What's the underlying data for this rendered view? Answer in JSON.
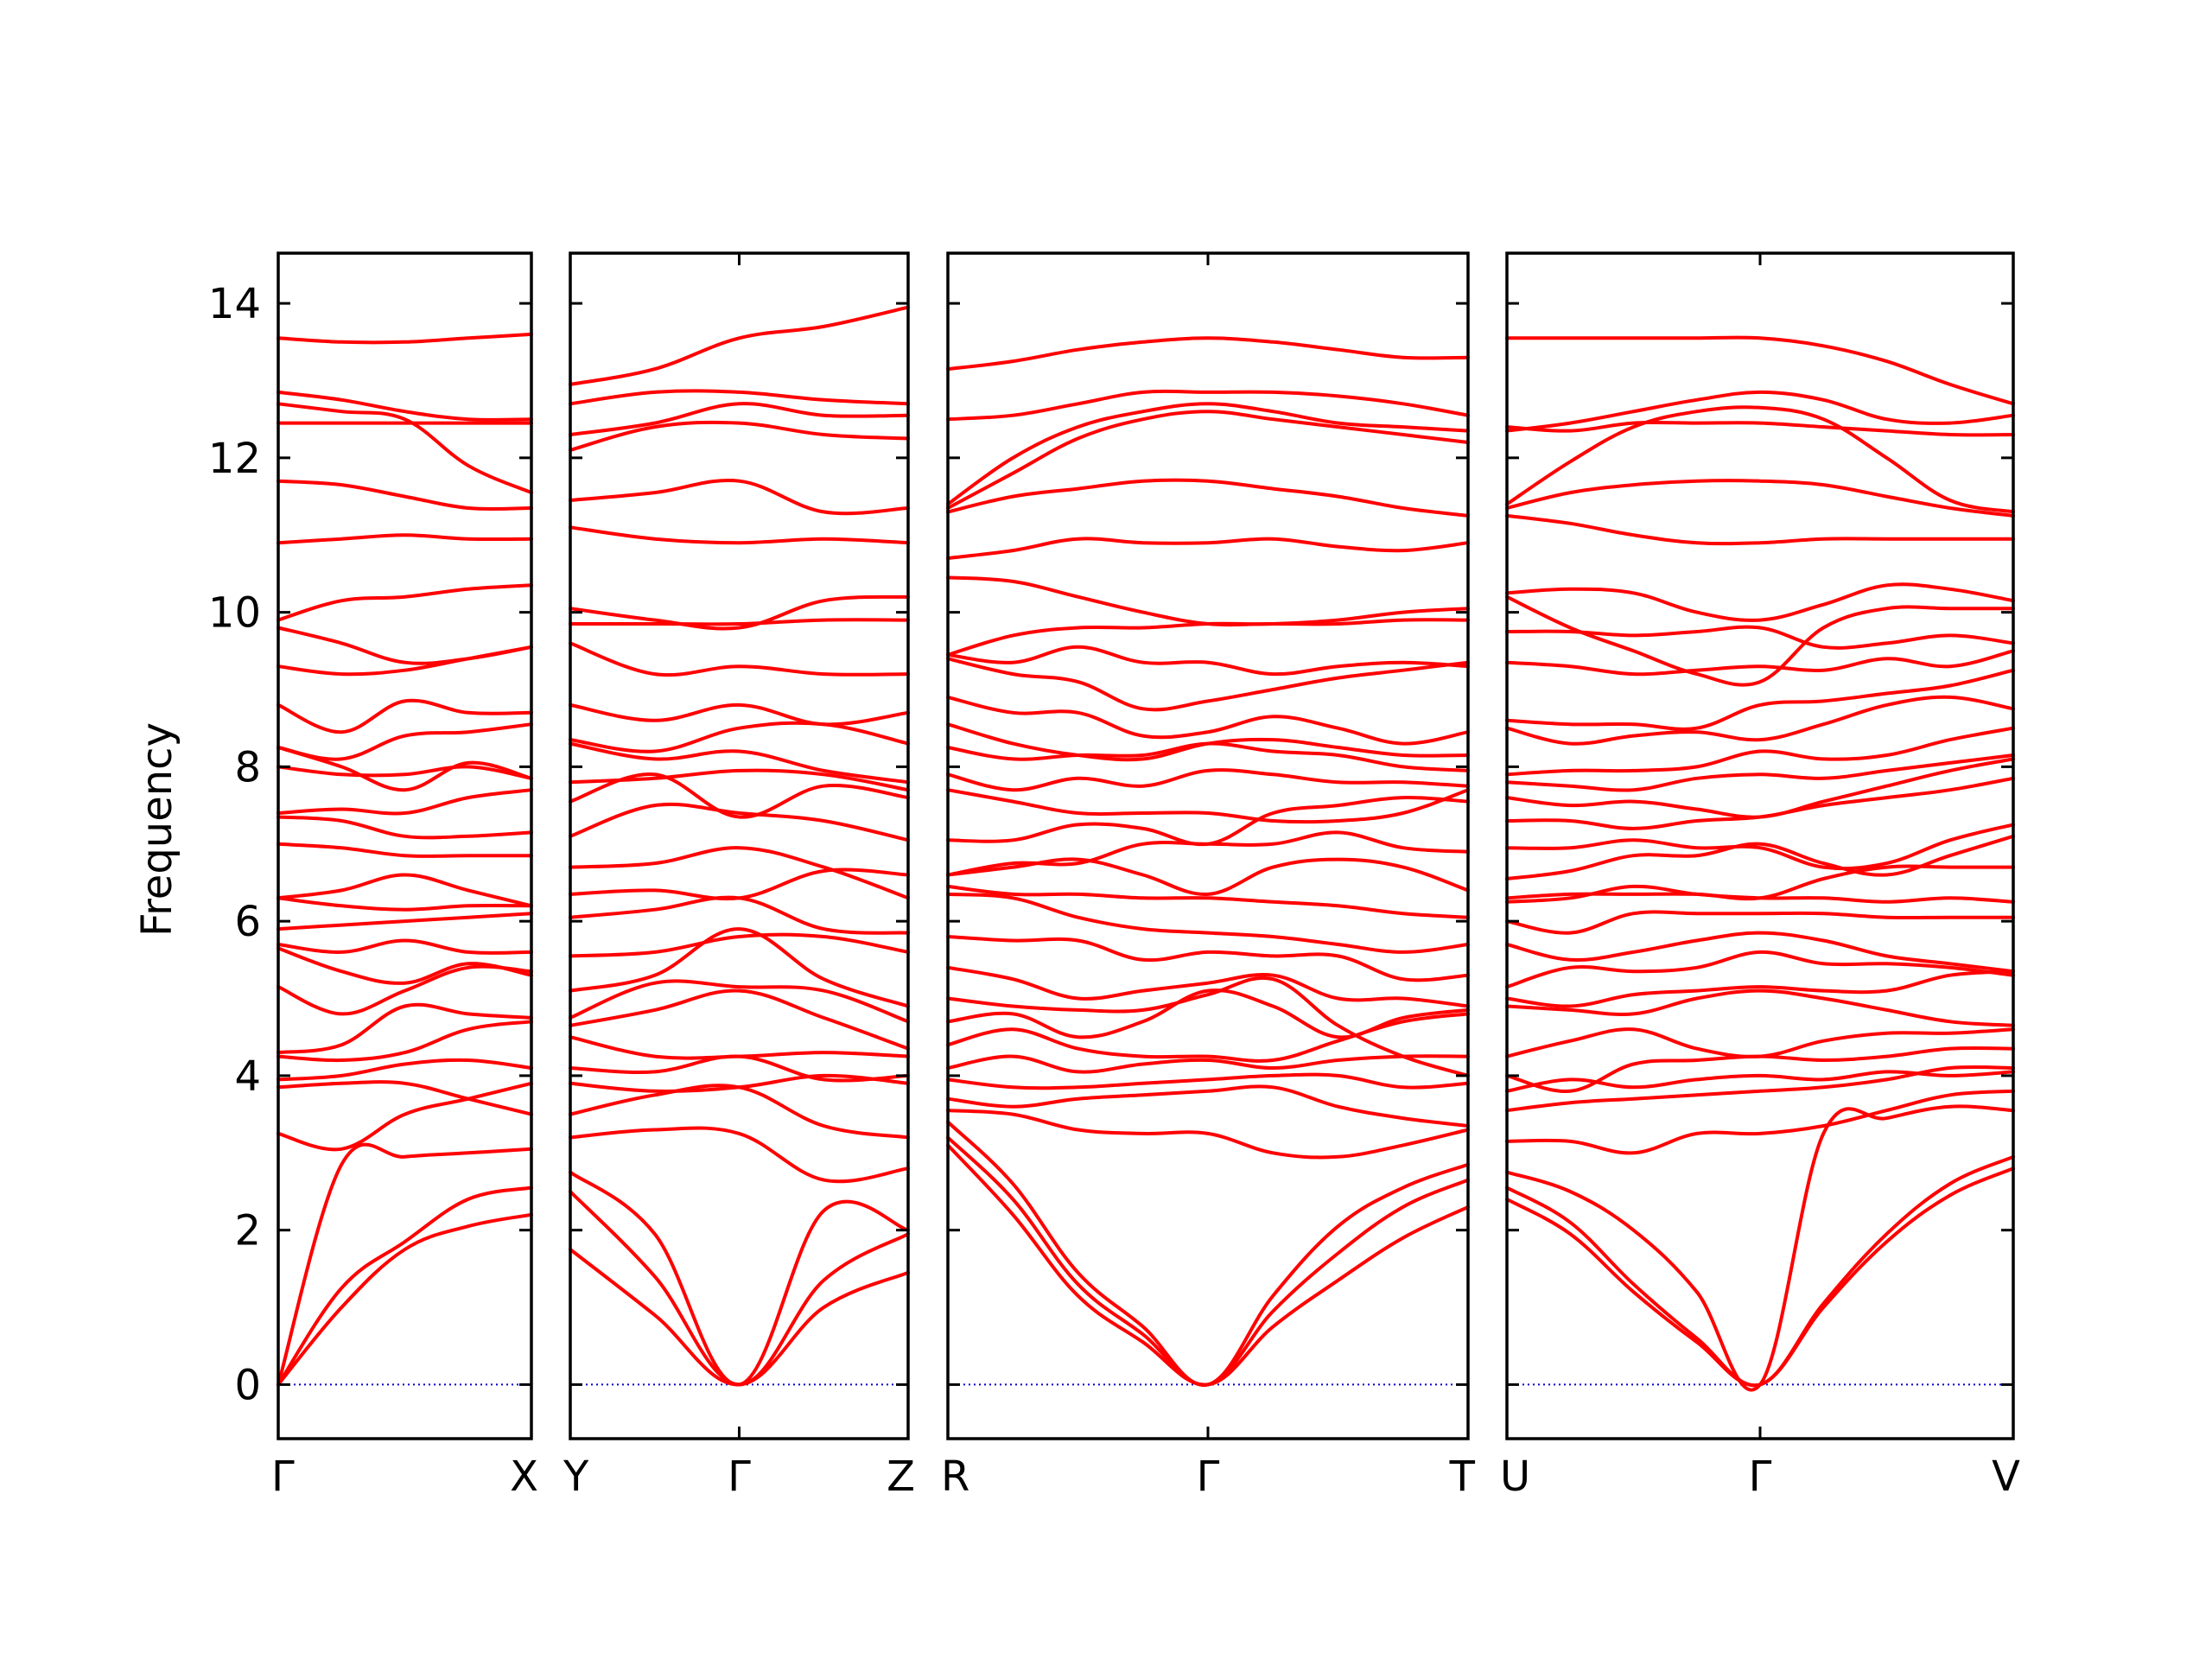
{
  "chart_data": {
    "type": "line",
    "ylabel": "Frequency",
    "ylim": [
      -0.7,
      14.65
    ],
    "yticks": [
      0,
      2,
      4,
      6,
      8,
      10,
      12,
      14
    ],
    "line_color": "#ff0000",
    "zero_line_color": "#0000cc",
    "panels": [
      {
        "labels": [
          "Γ",
          "X"
        ],
        "x": [
          0,
          0.25,
          0.5,
          0.75,
          1
        ],
        "bands": [
          [
            0,
            1.0,
            1.75,
            2.05,
            2.2
          ],
          [
            0,
            1.25,
            1.85,
            2.4,
            2.55
          ],
          [
            0,
            2.85,
            2.95,
            3.0,
            3.05
          ],
          [
            3.25,
            3.05,
            3.5,
            3.7,
            3.9
          ],
          [
            3.85,
            3.9,
            3.9,
            3.7,
            3.5
          ],
          [
            3.95,
            4.0,
            4.15,
            4.2,
            4.1
          ],
          [
            4.25,
            4.2,
            4.3,
            4.6,
            4.7
          ],
          [
            4.3,
            4.4,
            4.9,
            4.8,
            4.75
          ],
          [
            5.15,
            4.8,
            5.1,
            5.4,
            5.35
          ],
          [
            5.65,
            5.35,
            5.2,
            5.45,
            5.3
          ],
          [
            5.7,
            5.6,
            5.75,
            5.6,
            5.6
          ],
          [
            5.9,
            5.95,
            6.0,
            6.05,
            6.1
          ],
          [
            6.3,
            6.2,
            6.15,
            6.2,
            6.2
          ],
          [
            6.3,
            6.4,
            6.6,
            6.4,
            6.2
          ],
          [
            7.0,
            6.95,
            6.85,
            6.85,
            6.85
          ],
          [
            7.35,
            7.3,
            7.1,
            7.1,
            7.15
          ],
          [
            7.4,
            7.45,
            7.4,
            7.6,
            7.7
          ],
          [
            8.0,
            7.9,
            7.9,
            8.0,
            7.85
          ],
          [
            8.25,
            8.0,
            7.7,
            8.05,
            7.85
          ],
          [
            8.25,
            8.1,
            8.4,
            8.45,
            8.55
          ],
          [
            8.8,
            8.45,
            8.85,
            8.7,
            8.7
          ],
          [
            9.3,
            9.2,
            9.25,
            9.4,
            9.55
          ],
          [
            9.8,
            9.6,
            9.35,
            9.4,
            9.55
          ],
          [
            9.9,
            10.15,
            10.2,
            10.3,
            10.35
          ],
          [
            10.9,
            10.95,
            11.0,
            10.95,
            10.95
          ],
          [
            11.7,
            11.65,
            11.5,
            11.35,
            11.35
          ],
          [
            12.45,
            12.45,
            12.45,
            12.45,
            12.45
          ],
          [
            12.7,
            12.6,
            12.5,
            11.9,
            11.55
          ],
          [
            12.85,
            12.75,
            12.6,
            12.5,
            12.5
          ],
          [
            13.55,
            13.5,
            13.5,
            13.55,
            13.6
          ]
        ]
      },
      {
        "labels": [
          "Y",
          "Γ",
          "Z"
        ],
        "x": [
          0,
          0.25,
          0.5,
          0.75,
          1
        ],
        "bands": [
          [
            1.75,
            0.9,
            0,
            1.0,
            1.45
          ],
          [
            2.5,
            1.4,
            0,
            1.35,
            1.95
          ],
          [
            2.75,
            1.95,
            0,
            2.25,
            2.0
          ],
          [
            3.2,
            3.3,
            3.25,
            2.65,
            2.8
          ],
          [
            3.5,
            3.75,
            3.85,
            3.35,
            3.2
          ],
          [
            3.9,
            3.8,
            3.85,
            4.0,
            3.9
          ],
          [
            4.1,
            4.05,
            4.25,
            3.95,
            4.0
          ],
          [
            4.5,
            4.25,
            4.25,
            4.3,
            4.25
          ],
          [
            4.65,
            4.85,
            5.1,
            4.75,
            4.35
          ],
          [
            4.75,
            5.2,
            5.15,
            5.1,
            4.7
          ],
          [
            5.1,
            5.3,
            5.9,
            5.25,
            4.9
          ],
          [
            5.55,
            5.6,
            5.8,
            5.8,
            5.6
          ],
          [
            6.05,
            6.15,
            6.3,
            5.9,
            5.85
          ],
          [
            6.35,
            6.4,
            6.3,
            6.65,
            6.6
          ],
          [
            6.7,
            6.75,
            6.95,
            6.7,
            6.3
          ],
          [
            7.1,
            7.5,
            7.4,
            7.3,
            7.05
          ],
          [
            7.55,
            7.9,
            7.35,
            7.75,
            7.6
          ],
          [
            7.8,
            7.85,
            7.95,
            7.9,
            7.7
          ],
          [
            8.3,
            8.1,
            8.2,
            7.95,
            7.8
          ],
          [
            8.35,
            8.2,
            8.5,
            8.55,
            8.3
          ],
          [
            8.8,
            8.6,
            8.8,
            8.55,
            8.7
          ],
          [
            9.6,
            9.2,
            9.3,
            9.2,
            9.2
          ],
          [
            9.85,
            9.85,
            9.85,
            9.9,
            9.9
          ],
          [
            10.05,
            9.9,
            9.8,
            10.15,
            10.2
          ],
          [
            11.1,
            10.95,
            10.9,
            10.95,
            10.9
          ],
          [
            11.45,
            11.55,
            11.7,
            11.3,
            11.35
          ],
          [
            12.1,
            12.4,
            12.45,
            12.3,
            12.25
          ],
          [
            12.3,
            12.45,
            12.7,
            12.55,
            12.55
          ],
          [
            12.7,
            12.85,
            12.85,
            12.75,
            12.7
          ],
          [
            12.95,
            13.15,
            13.55,
            13.7,
            13.95
          ]
        ]
      },
      {
        "labels": [
          "R",
          "Γ",
          "T"
        ],
        "x": [
          0,
          0.125,
          0.25,
          0.375,
          0.5,
          0.625,
          0.75,
          0.875,
          1
        ],
        "bands": [
          [
            3.1,
            2.2,
            1.15,
            0.55,
            0,
            0.75,
            1.35,
            1.9,
            2.3
          ],
          [
            3.2,
            2.4,
            1.3,
            0.65,
            0,
            0.95,
            1.7,
            2.3,
            2.65
          ],
          [
            3.4,
            2.6,
            1.45,
            0.75,
            0,
            1.15,
            2.05,
            2.55,
            2.85
          ],
          [
            3.55,
            3.5,
            3.3,
            3.25,
            3.25,
            3.0,
            2.95,
            3.1,
            3.3
          ],
          [
            3.7,
            3.6,
            3.7,
            3.75,
            3.8,
            3.85,
            3.6,
            3.45,
            3.35
          ],
          [
            3.95,
            3.85,
            3.85,
            3.9,
            3.95,
            4.0,
            4.0,
            3.85,
            3.9
          ],
          [
            4.1,
            4.25,
            4.05,
            4.15,
            4.2,
            4.1,
            4.2,
            4.25,
            4.25
          ],
          [
            4.4,
            4.6,
            4.35,
            4.25,
            4.25,
            4.2,
            4.45,
            4.7,
            4.8
          ],
          [
            4.7,
            4.8,
            4.5,
            4.7,
            5.1,
            4.9,
            4.5,
            4.75,
            4.85
          ],
          [
            5.0,
            4.9,
            4.85,
            4.85,
            5.05,
            5.25,
            4.65,
            4.25,
            4.0
          ],
          [
            5.4,
            5.25,
            5.0,
            5.1,
            5.2,
            5.3,
            5.0,
            5.0,
            4.9
          ],
          [
            5.8,
            5.75,
            5.75,
            5.5,
            5.6,
            5.55,
            5.55,
            5.25,
            5.3
          ],
          [
            6.35,
            6.3,
            6.05,
            5.9,
            5.85,
            5.8,
            5.7,
            5.6,
            5.7
          ],
          [
            6.45,
            6.35,
            6.35,
            6.3,
            6.3,
            6.25,
            6.2,
            6.1,
            6.05
          ],
          [
            6.6,
            6.7,
            6.8,
            6.6,
            6.35,
            6.7,
            6.8,
            6.7,
            6.4
          ],
          [
            6.6,
            6.75,
            6.75,
            7.0,
            7.0,
            7.0,
            7.15,
            6.95,
            6.9
          ],
          [
            7.05,
            7.05,
            7.25,
            7.2,
            7.0,
            7.4,
            7.5,
            7.6,
            7.55
          ],
          [
            7.7,
            7.55,
            7.4,
            7.4,
            7.4,
            7.3,
            7.3,
            7.4,
            7.7
          ],
          [
            7.9,
            7.7,
            7.85,
            7.75,
            7.95,
            7.9,
            7.8,
            7.8,
            7.75
          ],
          [
            8.25,
            8.1,
            8.15,
            8.15,
            8.3,
            8.2,
            8.15,
            8.0,
            7.95
          ],
          [
            8.55,
            8.3,
            8.15,
            8.1,
            8.3,
            8.35,
            8.25,
            8.15,
            8.15
          ],
          [
            8.9,
            8.7,
            8.7,
            8.4,
            8.45,
            8.65,
            8.5,
            8.3,
            8.45
          ],
          [
            9.4,
            9.2,
            9.1,
            8.75,
            8.85,
            9.0,
            9.15,
            9.25,
            9.35
          ],
          [
            9.45,
            9.35,
            9.55,
            9.35,
            9.35,
            9.2,
            9.3,
            9.35,
            9.3
          ],
          [
            9.45,
            9.7,
            9.8,
            9.8,
            9.85,
            9.85,
            9.9,
            10.0,
            10.05
          ],
          [
            10.45,
            10.4,
            10.2,
            10.0,
            9.85,
            9.85,
            9.85,
            9.9,
            9.9
          ],
          [
            10.7,
            10.8,
            10.95,
            10.9,
            10.9,
            10.95,
            10.85,
            10.8,
            10.9
          ],
          [
            11.3,
            11.5,
            11.6,
            11.7,
            11.7,
            11.6,
            11.5,
            11.35,
            11.25
          ],
          [
            11.35,
            11.8,
            12.25,
            12.5,
            12.6,
            12.5,
            12.4,
            12.3,
            12.2
          ],
          [
            11.4,
            12.0,
            12.4,
            12.6,
            12.7,
            12.6,
            12.45,
            12.4,
            12.35
          ],
          [
            12.5,
            12.55,
            12.7,
            12.85,
            12.85,
            12.85,
            12.8,
            12.7,
            12.55
          ],
          [
            13.15,
            13.25,
            13.4,
            13.5,
            13.55,
            13.5,
            13.4,
            13.3,
            13.3
          ]
        ]
      },
      {
        "labels": [
          "U",
          "Γ",
          "V"
        ],
        "x": [
          0,
          0.125,
          0.25,
          0.375,
          0.5,
          0.625,
          0.75,
          0.875,
          1
        ],
        "bands": [
          [
            2.4,
            1.95,
            1.2,
            0.55,
            0,
            1.0,
            1.85,
            2.45,
            2.8
          ],
          [
            2.55,
            2.1,
            1.3,
            0.6,
            0,
            1.05,
            1.95,
            2.6,
            2.95
          ],
          [
            2.75,
            2.5,
            2.0,
            1.2,
            0,
            3.25,
            3.45,
            3.6,
            3.55
          ],
          [
            3.15,
            3.15,
            3.0,
            3.25,
            3.25,
            3.35,
            3.55,
            3.75,
            3.8
          ],
          [
            3.55,
            3.65,
            3.7,
            3.75,
            3.8,
            3.85,
            3.95,
            4.1,
            4.1
          ],
          [
            3.8,
            3.95,
            3.85,
            3.95,
            4.0,
            3.95,
            4.05,
            4.0,
            4.05
          ],
          [
            4.0,
            3.8,
            4.15,
            4.2,
            4.25,
            4.2,
            4.25,
            4.35,
            4.35
          ],
          [
            4.25,
            4.45,
            4.6,
            4.35,
            4.25,
            4.45,
            4.55,
            4.55,
            4.6
          ],
          [
            4.9,
            4.85,
            4.8,
            5.0,
            5.1,
            5.0,
            4.85,
            4.7,
            4.65
          ],
          [
            5.0,
            4.9,
            5.05,
            5.1,
            5.15,
            5.1,
            5.1,
            5.3,
            5.35
          ],
          [
            5.15,
            5.4,
            5.35,
            5.4,
            5.6,
            5.45,
            5.45,
            5.4,
            5.3
          ],
          [
            5.7,
            5.5,
            5.6,
            5.75,
            5.85,
            5.75,
            5.55,
            5.45,
            5.35
          ],
          [
            6.0,
            5.85,
            6.1,
            6.1,
            6.1,
            6.1,
            6.05,
            6.05,
            6.05
          ],
          [
            6.25,
            6.3,
            6.45,
            6.35,
            6.3,
            6.3,
            6.25,
            6.3,
            6.25
          ],
          [
            6.3,
            6.35,
            6.35,
            6.35,
            6.3,
            6.55,
            6.7,
            6.7,
            6.7
          ],
          [
            6.55,
            6.65,
            6.85,
            6.85,
            7.0,
            6.75,
            6.6,
            6.85,
            7.1
          ],
          [
            6.95,
            6.95,
            7.05,
            6.95,
            6.95,
            6.7,
            6.75,
            7.05,
            7.25
          ],
          [
            7.3,
            7.3,
            7.2,
            7.3,
            7.35,
            7.5,
            7.6,
            7.7,
            7.85
          ],
          [
            7.6,
            7.5,
            7.55,
            7.45,
            7.35,
            7.55,
            7.75,
            7.95,
            8.1
          ],
          [
            7.8,
            7.75,
            7.7,
            7.85,
            7.9,
            7.85,
            7.95,
            8.05,
            8.15
          ],
          [
            7.9,
            7.95,
            7.95,
            8.0,
            8.2,
            8.1,
            8.15,
            8.35,
            8.5
          ],
          [
            8.5,
            8.3,
            8.4,
            8.45,
            8.35,
            8.55,
            8.8,
            8.9,
            8.75
          ],
          [
            8.6,
            8.55,
            8.55,
            8.5,
            8.8,
            8.85,
            8.95,
            9.05,
            9.25
          ],
          [
            9.35,
            9.3,
            9.2,
            9.25,
            9.3,
            9.25,
            9.4,
            9.3,
            9.5
          ],
          [
            9.75,
            9.75,
            9.7,
            9.75,
            9.8,
            9.55,
            9.6,
            9.7,
            9.6
          ],
          [
            10.2,
            9.8,
            9.5,
            9.2,
            9.1,
            9.8,
            10.05,
            10.05,
            10.05
          ],
          [
            10.25,
            10.3,
            10.25,
            10.0,
            9.9,
            10.1,
            10.35,
            10.3,
            10.15
          ],
          [
            11.25,
            11.15,
            11.0,
            10.9,
            10.9,
            10.95,
            10.95,
            10.95,
            10.95
          ],
          [
            11.35,
            11.55,
            11.65,
            11.7,
            11.7,
            11.65,
            11.5,
            11.35,
            11.25
          ],
          [
            11.4,
            11.95,
            12.4,
            12.6,
            12.65,
            12.5,
            12.0,
            11.45,
            11.3
          ],
          [
            12.35,
            12.45,
            12.6,
            12.75,
            12.85,
            12.75,
            12.5,
            12.45,
            12.55
          ],
          [
            12.4,
            12.35,
            12.45,
            12.45,
            12.45,
            12.4,
            12.35,
            12.3,
            12.3
          ],
          [
            13.55,
            13.55,
            13.55,
            13.55,
            13.55,
            13.45,
            13.25,
            12.95,
            12.7
          ]
        ]
      }
    ]
  }
}
